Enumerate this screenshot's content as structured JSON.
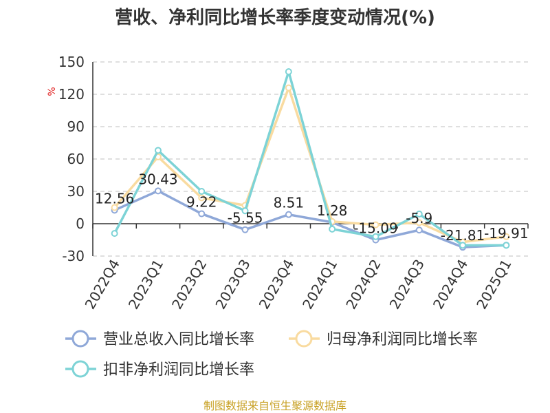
{
  "chart_data": {
    "type": "line",
    "title": "营收、净利同比增长率季度变动情况(%)",
    "ylabel": "%",
    "xlabel": "",
    "ylim": [
      -30,
      150
    ],
    "yticks": [
      -30,
      0,
      30,
      60,
      90,
      120,
      150
    ],
    "grid": true,
    "legend_position": "bottom",
    "categories": [
      "2022Q4",
      "2023Q1",
      "2023Q2",
      "2023Q3",
      "2023Q4",
      "2024Q1",
      "2024Q2",
      "2024Q3",
      "2024Q4",
      "2025Q1"
    ],
    "series": [
      {
        "name": "营业总收入同比增长率",
        "color": "#8fa8d8",
        "values": [
          12.56,
          30.43,
          9.22,
          -5.55,
          8.51,
          1.28,
          -15.09,
          -5.9,
          -21.81,
          -19.91
        ],
        "labels": [
          "12.56",
          "30.43",
          "9.22",
          "-5.55",
          "8.51",
          "1.28",
          "-15.09",
          "-5.9",
          "-21.81",
          "-19.91"
        ]
      },
      {
        "name": "归母净利润同比增长率",
        "color": "#f9dba0",
        "values": [
          15,
          62,
          24,
          17,
          126,
          2,
          -1,
          1,
          -17,
          -12
        ]
      },
      {
        "name": "扣非净利润同比增长率",
        "color": "#7dd3d6",
        "values": [
          -9,
          68,
          30,
          12,
          141,
          -5,
          -12,
          9,
          -20,
          -20
        ]
      }
    ]
  },
  "footer": {
    "source": "制图数据来自恒生聚源数据库"
  }
}
